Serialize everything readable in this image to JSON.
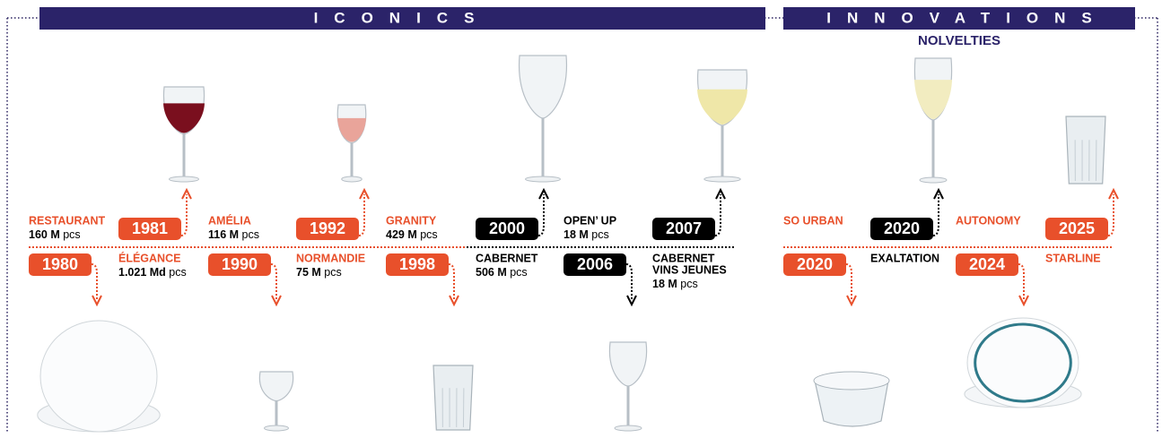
{
  "header": {
    "iconics": "ICONICS",
    "innovations": "INNOVATIONS",
    "novelties": "NOLVELTIES"
  },
  "items": [
    {
      "year": "1980",
      "name": [
        "RESTAURANT"
      ],
      "qty": "160 M",
      "unit": "pcs"
    },
    {
      "year": "1981",
      "name": [
        "ÉLÉGANCE"
      ],
      "qty": "1.021 Md",
      "unit": "pcs"
    },
    {
      "year": "1990",
      "name": [
        "AMÉLIA"
      ],
      "qty": "116 M",
      "unit": "pcs"
    },
    {
      "year": "1992",
      "name": [
        "NORMANDIE"
      ],
      "qty": "75 M",
      "unit": "pcs"
    },
    {
      "year": "1998",
      "name": [
        "GRANITY"
      ],
      "qty": "429 M",
      "unit": "pcs"
    },
    {
      "year": "2000",
      "name": [
        "CABERNET"
      ],
      "qty": "506 M",
      "unit": "pcs"
    },
    {
      "year": "2006",
      "name": [
        "OPEN’ UP"
      ],
      "qty": "18 M",
      "unit": "pcs"
    },
    {
      "year": "2007",
      "name": [
        "CABERNET",
        "VINS JEUNES"
      ],
      "qty": "18 M",
      "unit": "pcs"
    },
    {
      "year": "2020",
      "name": [
        "SO URBAN"
      ]
    },
    {
      "year": "2020",
      "name": [
        "EXALTATION"
      ]
    },
    {
      "year": "2024",
      "name": [
        "AUTONOMY"
      ]
    },
    {
      "year": "2025",
      "name": [
        "STARLINE"
      ]
    }
  ]
}
